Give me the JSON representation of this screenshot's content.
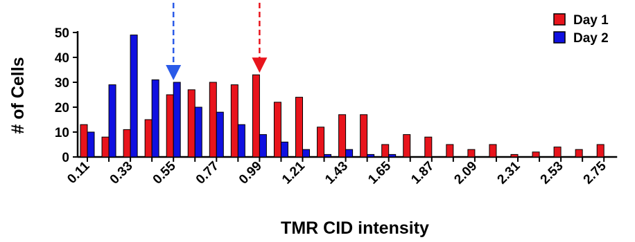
{
  "chart_data": {
    "type": "bar",
    "xlabel": "TMR CID intensity",
    "ylabel": "# of Cells",
    "ylim": [
      0,
      50
    ],
    "y_ticks": [
      "0",
      "10",
      "20",
      "30",
      "40",
      "50"
    ],
    "categories": [
      "0.11",
      "0.22",
      "0.33",
      "0.44",
      "0.55",
      "0.66",
      "0.77",
      "0.88",
      "0.99",
      "1.10",
      "1.21",
      "1.32",
      "1.43",
      "1.54",
      "1.65",
      "1.76",
      "1.87",
      "1.98",
      "2.09",
      "2.20",
      "2.31",
      "2.42",
      "2.53",
      "2.64",
      "2.75"
    ],
    "x_tick_labels": [
      "0.11",
      "0.33",
      "0.55",
      "0.77",
      "0.99",
      "1.21",
      "1.43",
      "1.65",
      "1.87",
      "2.09",
      "2.31",
      "2.53",
      "2.75"
    ],
    "series": [
      {
        "name": "Day 1",
        "color": "#e8141c",
        "values": [
          13,
          8,
          11,
          15,
          25,
          27,
          30,
          29,
          33,
          22,
          24,
          12,
          17,
          17,
          5,
          9,
          8,
          5,
          3,
          5,
          1,
          2,
          4,
          3,
          5
        ]
      },
      {
        "name": "Day 2",
        "color": "#1010e0",
        "values": [
          10,
          29,
          49,
          31,
          30,
          20,
          18,
          13,
          9,
          6,
          3,
          1,
          3,
          1,
          1,
          0,
          0,
          0,
          0,
          0,
          0,
          0,
          0,
          0,
          0
        ]
      }
    ],
    "annotations": [
      {
        "type": "dashed-arrow",
        "color": "#2a5ae8",
        "series": "Day 2",
        "category": "0.55"
      },
      {
        "type": "dashed-arrow",
        "color": "#e8141c",
        "series": "Day 1",
        "category": "0.99"
      }
    ],
    "legend_position": "top-right",
    "grid": false
  }
}
